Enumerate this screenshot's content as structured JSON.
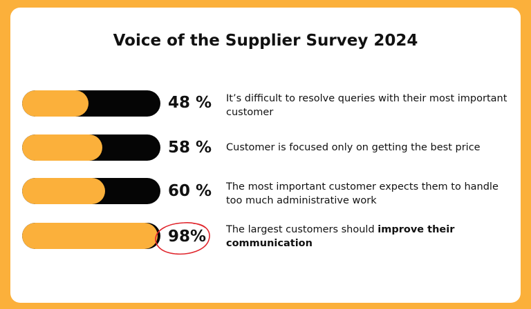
{
  "chart_data": {
    "type": "bar",
    "title": "Voice of the Supplier Survey 2024",
    "orientation": "horizontal",
    "ylim": [
      0,
      100
    ],
    "rows": [
      {
        "percent": 48,
        "label": "48 %",
        "text": "It’s difficult to resolve queries with their most important customer",
        "text_bold": ""
      },
      {
        "percent": 58,
        "label": "58 %",
        "text": "Customer is focused only on getting the best price",
        "text_bold": ""
      },
      {
        "percent": 60,
        "label": "60 %",
        "text": "The most important customer expects them to handle too much administrative work",
        "text_bold": ""
      },
      {
        "percent": 98,
        "label": "98%",
        "text": "The largest customers should ",
        "text_bold": "improve their communication"
      }
    ],
    "highlighted_row": 3
  },
  "colors": {
    "background": "#FBB03B",
    "card": "#FFFFFF",
    "bar_fill": "#FBB03B",
    "bar_track": "#050505",
    "highlight_circle": "#E0242B"
  }
}
